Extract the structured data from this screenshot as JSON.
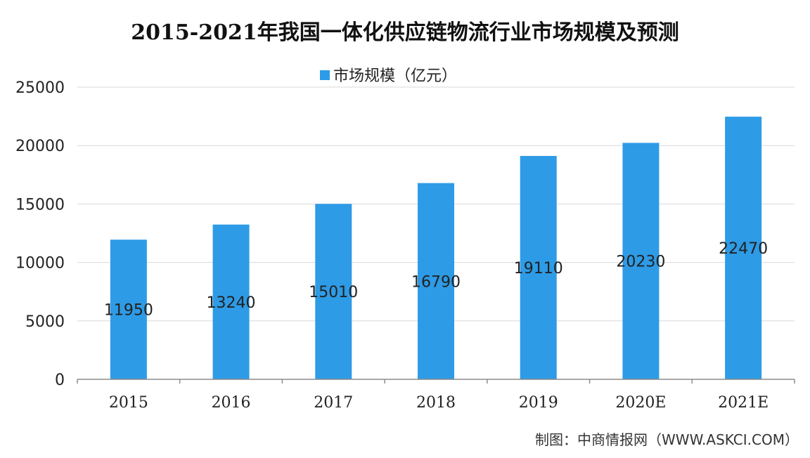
{
  "chart_data": {
    "type": "bar",
    "title": "2015-2021年我国一体化供应链物流行业市场规模及预测",
    "categories": [
      "2015",
      "2016",
      "2017",
      "2018",
      "2019",
      "2020E",
      "2021E"
    ],
    "series": [
      {
        "name": "市场规模（亿元）",
        "values": [
          11950,
          13240,
          15010,
          16790,
          19110,
          20230,
          22470
        ]
      }
    ],
    "ylim": [
      0,
      25000
    ],
    "yticks": [
      "0",
      "5000",
      "10000",
      "15000",
      "20000",
      "25000"
    ],
    "grid": true,
    "legend_position": "top-center",
    "color": "#2e9be6"
  },
  "source": "制图：中商情报网（WWW.ASKCI.COM）"
}
